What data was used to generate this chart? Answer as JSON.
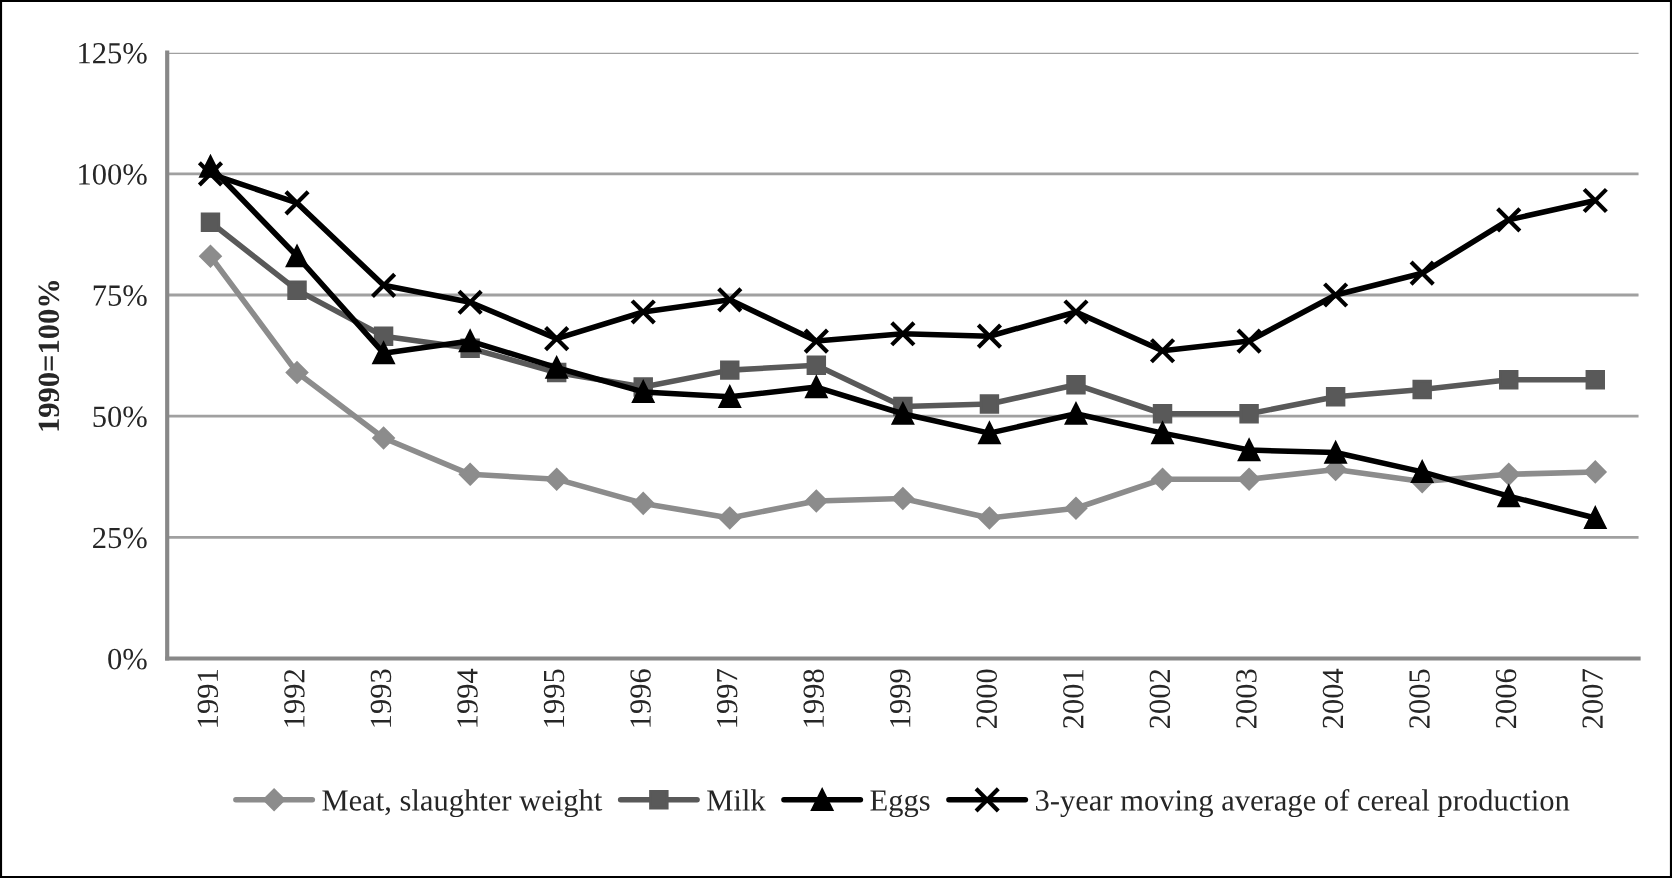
{
  "chart_data": {
    "type": "line",
    "ylabel": "1990=100%",
    "categories": [
      "1991",
      "1992",
      "1993",
      "1994",
      "1995",
      "1996",
      "1997",
      "1998",
      "1999",
      "2000",
      "2001",
      "2002",
      "2003",
      "2004",
      "2005",
      "2006",
      "2007"
    ],
    "series": [
      {
        "name": "Meat, slaughter weight",
        "color": "#8c8c8c",
        "marker": "diamond",
        "values": [
          83,
          59,
          45.5,
          38,
          37,
          32,
          29,
          32.5,
          33,
          29,
          31,
          37,
          37,
          39,
          36.5,
          38,
          38.5
        ]
      },
      {
        "name": "Milk",
        "color": "#595959",
        "marker": "square",
        "values": [
          90,
          76,
          66.5,
          64,
          59,
          56,
          59.5,
          60.5,
          52,
          52.5,
          56.5,
          50.5,
          50.5,
          54,
          55.5,
          57.5,
          57.5
        ]
      },
      {
        "name": "Eggs",
        "color": "#000000",
        "marker": "triangle",
        "values": [
          101.5,
          83,
          63,
          65.5,
          60,
          55,
          54,
          56,
          50.5,
          46.5,
          50.5,
          46.5,
          43,
          42.5,
          38.5,
          33.5,
          29
        ]
      },
      {
        "name": "3-year moving average of cereal production",
        "color": "#000000",
        "marker": "cross",
        "values": [
          100,
          94,
          77,
          73.5,
          66,
          71.5,
          74,
          65.5,
          67,
          66.5,
          71.5,
          63.5,
          65.5,
          75,
          79.5,
          90.5,
          94.5
        ]
      }
    ],
    "ylim": [
      0,
      125
    ],
    "yticks": [
      {
        "value": 0,
        "label": "0%"
      },
      {
        "value": 25,
        "label": "25%"
      },
      {
        "value": 50,
        "label": "50%"
      },
      {
        "value": 75,
        "label": "75%"
      },
      {
        "value": 100,
        "label": "100%"
      },
      {
        "value": 125,
        "label": "125%"
      }
    ],
    "grid": "y",
    "legend": "bottom",
    "line_style": "solid"
  }
}
